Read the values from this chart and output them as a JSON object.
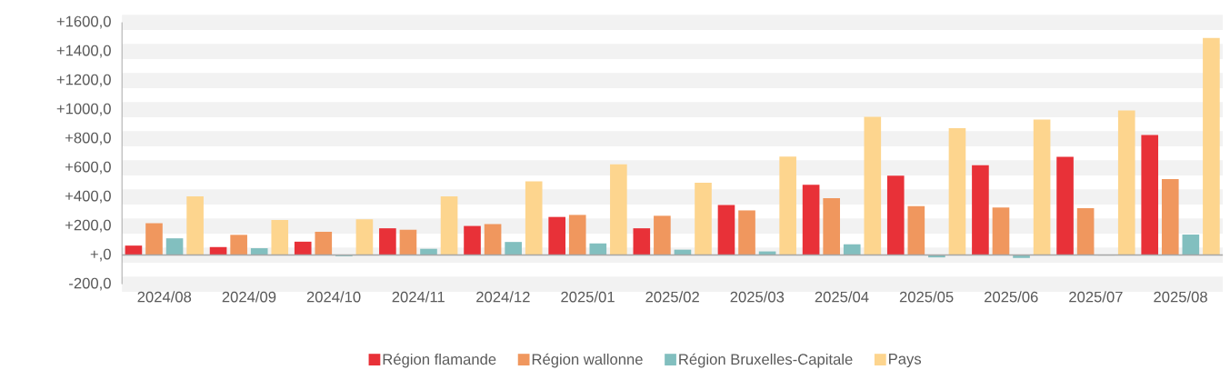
{
  "chart_data": {
    "type": "bar",
    "categories": [
      "2024/08",
      "2024/09",
      "2024/10",
      "2024/11",
      "2024/12",
      "2025/01",
      "2025/02",
      "2025/03",
      "2025/04",
      "2025/05",
      "2025/06",
      "2025/07",
      "2025/08"
    ],
    "series": [
      {
        "name": "Région flamande",
        "color": "#e83138",
        "values": [
          65,
          55,
          92,
          184,
          200,
          262,
          184,
          344,
          483,
          546,
          618,
          675,
          825
        ]
      },
      {
        "name": "Région wallonne",
        "color": "#f0975e",
        "values": [
          219,
          139,
          160,
          174,
          213,
          276,
          270,
          307,
          391,
          336,
          327,
          323,
          522
        ]
      },
      {
        "name": "Région Bruxelles-Capitale",
        "color": "#82bfbf",
        "values": [
          115,
          47,
          -8,
          43,
          90,
          80,
          37,
          25,
          74,
          -16,
          -20,
          -3,
          141
        ]
      },
      {
        "name": "Pays",
        "color": "#fdd58e",
        "values": [
          403,
          241,
          246,
          403,
          507,
          624,
          497,
          677,
          951,
          872,
          931,
          994,
          1492
        ]
      }
    ],
    "ylim": [
      -200,
      1600
    ],
    "yticks": [
      {
        "value": -200,
        "label": "-200,0"
      },
      {
        "value": 0,
        "label": "+,0"
      },
      {
        "value": 200,
        "label": "+200,0"
      },
      {
        "value": 400,
        "label": "+400,0"
      },
      {
        "value": 600,
        "label": "+600,0"
      },
      {
        "value": 800,
        "label": "+800,0"
      },
      {
        "value": 1000,
        "label": "+1000,0"
      },
      {
        "value": 1200,
        "label": "+1200,0"
      },
      {
        "value": 1400,
        "label": "+1400,0"
      },
      {
        "value": 1600,
        "label": "+1600,0"
      }
    ],
    "grid": "y",
    "legend": "bottom"
  }
}
